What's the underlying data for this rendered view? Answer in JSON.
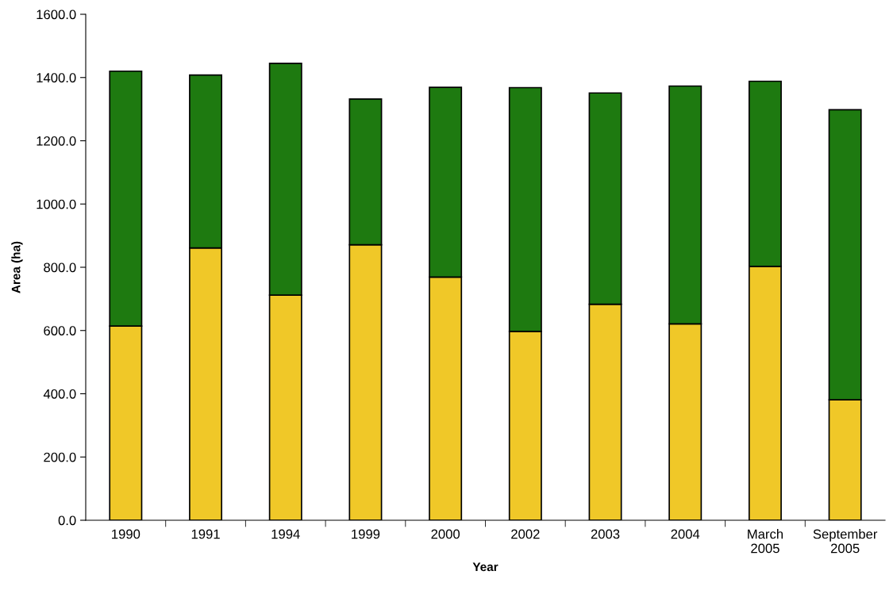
{
  "chart_data": {
    "type": "bar",
    "stacked": true,
    "xlabel": "Year",
    "ylabel": "Area (ha)",
    "categories": [
      "1990",
      "1991",
      "1994",
      "1999",
      "2000",
      "2002",
      "2003",
      "2004",
      "March\n2005",
      "September\n2005"
    ],
    "series": [
      {
        "color": "#f0c828",
        "values": [
          614,
          861,
          712,
          871,
          769,
          597,
          683,
          621,
          803,
          381
        ]
      },
      {
        "color": "#1e7a10",
        "values": [
          806,
          547,
          733,
          461,
          600,
          771,
          668,
          752,
          585,
          917
        ]
      }
    ],
    "ylim": [
      0,
      1600
    ],
    "yticks": [
      {
        "value": 0,
        "label": "0.0"
      },
      {
        "value": 200,
        "label": "200.0"
      },
      {
        "value": 400,
        "label": "400.0"
      },
      {
        "value": 600,
        "label": "600.0"
      },
      {
        "value": 800,
        "label": "800.0"
      },
      {
        "value": 1000,
        "label": "1000.0"
      },
      {
        "value": 1200,
        "label": "1200.0"
      },
      {
        "value": 1400,
        "label": "1400.0"
      },
      {
        "value": 1600,
        "label": "1600.0"
      }
    ],
    "grid": false,
    "legend": false
  }
}
